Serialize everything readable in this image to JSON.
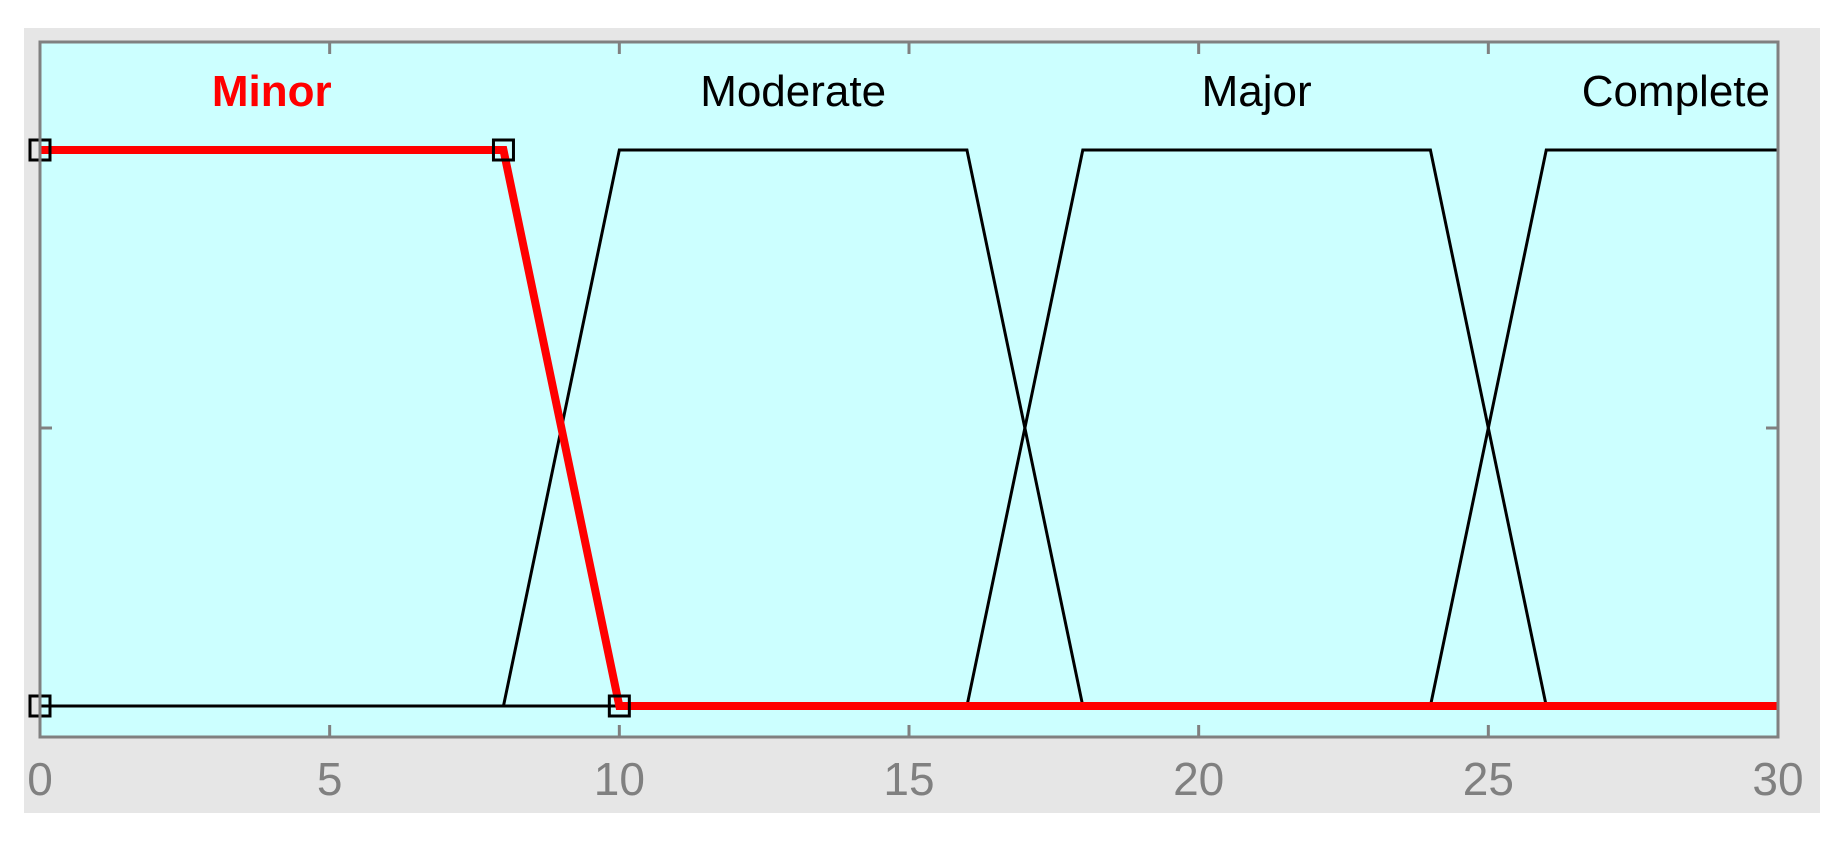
{
  "chart_data": {
    "type": "line",
    "title": "",
    "xlabel": "",
    "ylabel": "",
    "xlim": [
      0,
      30
    ],
    "ylim": [
      0,
      1
    ],
    "x_ticks": [
      "0",
      "5",
      "10",
      "15",
      "20",
      "25",
      "30"
    ],
    "y_ticks": [
      0,
      0.5,
      1
    ],
    "grid": false,
    "colors": {
      "figure_background": "#e6e6e6",
      "plot_background": "#ccffff",
      "axis_frame": "#808080",
      "tick_label": "#808080",
      "selected": "#ff0000",
      "unselected": "#000000"
    },
    "series": [
      {
        "name": "Minor",
        "shape": "trapezoid",
        "params": [
          0,
          0,
          8,
          10
        ],
        "x": [
          0,
          8,
          10,
          30
        ],
        "y": [
          1,
          1,
          0,
          0
        ],
        "selected": true
      },
      {
        "name": "Moderate",
        "shape": "trapezoid",
        "params": [
          8,
          10,
          16,
          18
        ],
        "x": [
          0,
          8,
          10,
          16,
          18,
          30
        ],
        "y": [
          0,
          0,
          1,
          1,
          0,
          0
        ],
        "selected": false
      },
      {
        "name": "Major",
        "shape": "trapezoid",
        "params": [
          16,
          18,
          24,
          26
        ],
        "x": [
          0,
          16,
          18,
          24,
          26,
          30
        ],
        "y": [
          0,
          0,
          1,
          1,
          0,
          0
        ],
        "selected": false
      },
      {
        "name": "Complete",
        "shape": "trapezoid",
        "params": [
          24,
          26,
          30,
          30
        ],
        "x": [
          0,
          24,
          26,
          30
        ],
        "y": [
          0,
          0,
          1,
          1
        ],
        "selected": false
      }
    ],
    "handle_points": [
      {
        "x": 0,
        "y": 1
      },
      {
        "x": 8,
        "y": 1
      },
      {
        "x": 0,
        "y": 0
      },
      {
        "x": 10,
        "y": 0
      }
    ]
  }
}
